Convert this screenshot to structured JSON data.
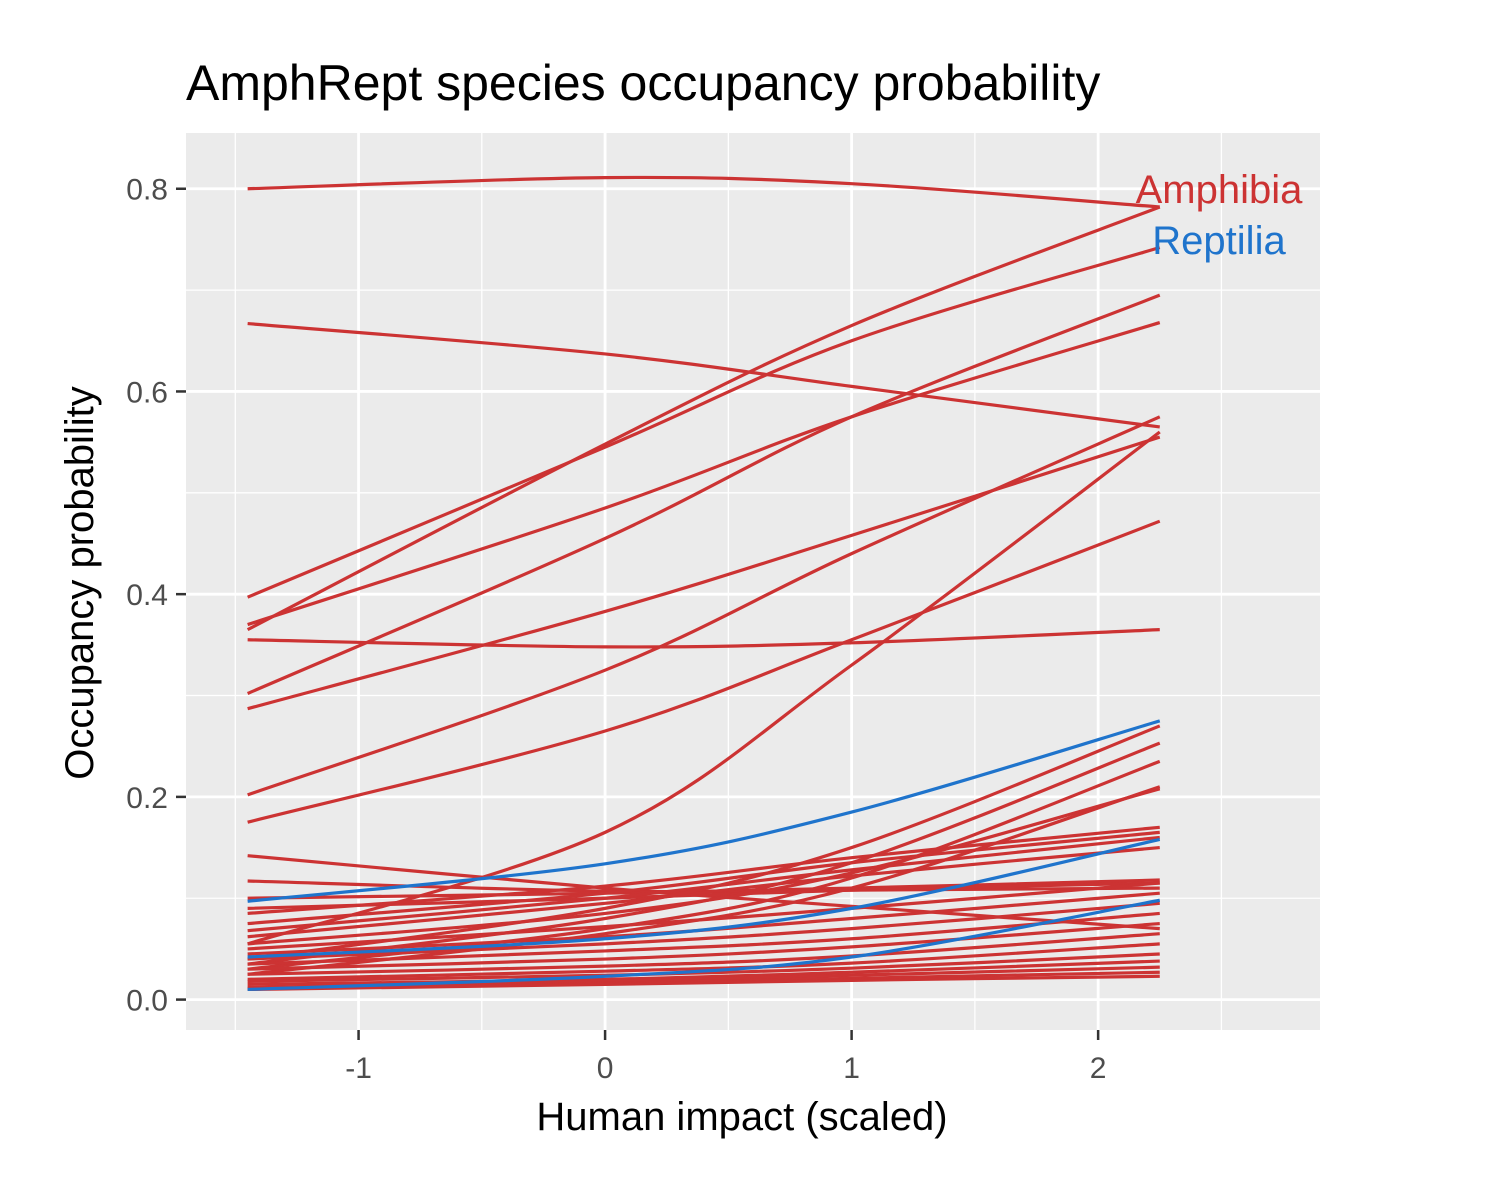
{
  "chart_data": {
    "type": "line",
    "title": "AmphRept species occupancy probability",
    "xlabel": "Human impact (scaled)",
    "ylabel": "Occupancy probability",
    "xlim": [
      -1.7,
      2.9
    ],
    "ylim": [
      -0.03,
      0.855
    ],
    "x_ticks": [
      -1,
      0,
      1,
      2
    ],
    "x_tick_labels": [
      "-1",
      "0",
      "1",
      "2"
    ],
    "y_ticks": [
      0.0,
      0.2,
      0.4,
      0.6,
      0.8
    ],
    "y_tick_labels": [
      "0.0",
      "0.2",
      "0.4",
      "0.6",
      "0.8"
    ],
    "grid": true,
    "legend": {
      "placement": "top-right",
      "entries": [
        {
          "name": "Amphibia",
          "color": "#cc3333"
        },
        {
          "name": "Reptilia",
          "color": "#1f74cc"
        }
      ]
    },
    "colors": {
      "Amphibia": "#cc3333",
      "Reptilia": "#1f74cc",
      "panel": "#ebebeb",
      "grid": "#ffffff"
    },
    "series": [
      {
        "group": "Amphibia",
        "x": [
          -1.45,
          0.0,
          1.0,
          2.25
        ],
        "y": [
          0.8,
          0.811,
          0.805,
          0.782
        ]
      },
      {
        "group": "Amphibia",
        "x": [
          -1.45,
          0.0,
          1.0,
          2.25
        ],
        "y": [
          0.667,
          0.637,
          0.605,
          0.565
        ]
      },
      {
        "group": "Amphibia",
        "x": [
          -1.45,
          0.0,
          1.0,
          2.25
        ],
        "y": [
          0.365,
          0.548,
          0.665,
          0.782
        ]
      },
      {
        "group": "Amphibia",
        "x": [
          -1.45,
          0.0,
          1.0,
          2.25
        ],
        "y": [
          0.397,
          0.545,
          0.65,
          0.742
        ]
      },
      {
        "group": "Amphibia",
        "x": [
          -1.45,
          0.0,
          1.0,
          2.25
        ],
        "y": [
          0.37,
          0.485,
          0.575,
          0.668
        ]
      },
      {
        "group": "Amphibia",
        "x": [
          -1.45,
          0.0,
          1.0,
          2.25
        ],
        "y": [
          0.302,
          0.455,
          0.575,
          0.695
        ]
      },
      {
        "group": "Amphibia",
        "x": [
          -1.45,
          0.0,
          1.0,
          2.25
        ],
        "y": [
          0.287,
          0.383,
          0.458,
          0.555
        ]
      },
      {
        "group": "Amphibia",
        "x": [
          -1.45,
          0.0,
          1.0,
          2.25
        ],
        "y": [
          0.355,
          0.348,
          0.352,
          0.365
        ]
      },
      {
        "group": "Amphibia",
        "x": [
          -1.45,
          0.0,
          1.0,
          2.25
        ],
        "y": [
          0.202,
          0.325,
          0.44,
          0.575
        ]
      },
      {
        "group": "Amphibia",
        "x": [
          -1.45,
          0.0,
          1.0,
          2.25
        ],
        "y": [
          0.175,
          0.265,
          0.355,
          0.472
        ]
      },
      {
        "group": "Amphibia",
        "x": [
          -1.45,
          0.0,
          1.0,
          2.25
        ],
        "y": [
          0.055,
          0.165,
          0.33,
          0.56
        ]
      },
      {
        "group": "Amphibia",
        "x": [
          -1.45,
          0.0,
          1.0,
          2.25
        ],
        "y": [
          0.142,
          0.11,
          0.092,
          0.07
        ]
      },
      {
        "group": "Amphibia",
        "x": [
          -1.45,
          0.0,
          1.0,
          2.25
        ],
        "y": [
          0.117,
          0.107,
          0.108,
          0.11
        ]
      },
      {
        "group": "Amphibia",
        "x": [
          -1.45,
          0.0,
          1.0,
          2.25
        ],
        "y": [
          0.1,
          0.105,
          0.11,
          0.118
        ]
      },
      {
        "group": "Amphibia",
        "x": [
          -1.45,
          0.0,
          1.0,
          2.25
        ],
        "y": [
          0.09,
          0.1,
          0.108,
          0.115
        ]
      },
      {
        "group": "Amphibia",
        "x": [
          -1.45,
          0.0,
          1.0,
          2.25
        ],
        "y": [
          0.085,
          0.112,
          0.14,
          0.17
        ]
      },
      {
        "group": "Amphibia",
        "x": [
          -1.45,
          0.0,
          1.0,
          2.25
        ],
        "y": [
          0.075,
          0.105,
          0.135,
          0.165
        ]
      },
      {
        "group": "Amphibia",
        "x": [
          -1.45,
          0.0,
          1.0,
          2.25
        ],
        "y": [
          0.068,
          0.1,
          0.128,
          0.16
        ]
      },
      {
        "group": "Amphibia",
        "x": [
          -1.45,
          0.0,
          1.0,
          2.25
        ],
        "y": [
          0.062,
          0.095,
          0.122,
          0.15
        ]
      },
      {
        "group": "Amphibia",
        "x": [
          -1.45,
          0.0,
          1.0,
          2.25
        ],
        "y": [
          0.04,
          0.09,
          0.15,
          0.27
        ]
      },
      {
        "group": "Amphibia",
        "x": [
          -1.45,
          0.0,
          1.0,
          2.25
        ],
        "y": [
          0.035,
          0.08,
          0.135,
          0.253
        ]
      },
      {
        "group": "Amphibia",
        "x": [
          -1.45,
          0.0,
          1.0,
          2.25
        ],
        "y": [
          0.03,
          0.07,
          0.12,
          0.235
        ]
      },
      {
        "group": "Amphibia",
        "x": [
          -1.45,
          0.0,
          1.0,
          2.25
        ],
        "y": [
          0.025,
          0.065,
          0.11,
          0.21
        ]
      },
      {
        "group": "Amphibia",
        "x": [
          -1.45,
          0.0,
          1.0,
          2.25
        ],
        "y": [
          0.055,
          0.085,
          0.125,
          0.208
        ]
      },
      {
        "group": "Amphibia",
        "x": [
          -1.45,
          0.0,
          1.0,
          2.25
        ],
        "y": [
          0.05,
          0.072,
          0.09,
          0.115
        ]
      },
      {
        "group": "Amphibia",
        "x": [
          -1.45,
          0.0,
          1.0,
          2.25
        ],
        "y": [
          0.045,
          0.062,
          0.08,
          0.105
        ]
      },
      {
        "group": "Amphibia",
        "x": [
          -1.45,
          0.0,
          1.0,
          2.25
        ],
        "y": [
          0.04,
          0.055,
          0.07,
          0.095
        ]
      },
      {
        "group": "Amphibia",
        "x": [
          -1.45,
          0.0,
          1.0,
          2.25
        ],
        "y": [
          0.035,
          0.048,
          0.06,
          0.085
        ]
      },
      {
        "group": "Amphibia",
        "x": [
          -1.45,
          0.0,
          1.0,
          2.25
        ],
        "y": [
          0.03,
          0.04,
          0.052,
          0.075
        ]
      },
      {
        "group": "Amphibia",
        "x": [
          -1.45,
          0.0,
          1.0,
          2.25
        ],
        "y": [
          0.025,
          0.033,
          0.043,
          0.065
        ]
      },
      {
        "group": "Amphibia",
        "x": [
          -1.45,
          0.0,
          1.0,
          2.25
        ],
        "y": [
          0.02,
          0.028,
          0.036,
          0.055
        ]
      },
      {
        "group": "Amphibia",
        "x": [
          -1.45,
          0.0,
          1.0,
          2.25
        ],
        "y": [
          0.018,
          0.024,
          0.031,
          0.045
        ]
      },
      {
        "group": "Amphibia",
        "x": [
          -1.45,
          0.0,
          1.0,
          2.25
        ],
        "y": [
          0.015,
          0.02,
          0.027,
          0.038
        ]
      },
      {
        "group": "Amphibia",
        "x": [
          -1.45,
          0.0,
          1.0,
          2.25
        ],
        "y": [
          0.012,
          0.018,
          0.024,
          0.032
        ]
      },
      {
        "group": "Amphibia",
        "x": [
          -1.45,
          0.0,
          1.0,
          2.25
        ],
        "y": [
          0.011,
          0.016,
          0.021,
          0.027
        ]
      },
      {
        "group": "Amphibia",
        "x": [
          -1.45,
          0.0,
          1.0,
          2.25
        ],
        "y": [
          0.01,
          0.015,
          0.019,
          0.023
        ]
      },
      {
        "group": "Reptilia",
        "x": [
          -1.45,
          0.0,
          1.0,
          2.25
        ],
        "y": [
          0.097,
          0.134,
          0.185,
          0.275
        ]
      },
      {
        "group": "Reptilia",
        "x": [
          -1.45,
          0.0,
          1.0,
          2.25
        ],
        "y": [
          0.042,
          0.06,
          0.09,
          0.158
        ]
      },
      {
        "group": "Reptilia",
        "x": [
          -1.45,
          0.0,
          1.0,
          2.25
        ],
        "y": [
          0.01,
          0.023,
          0.042,
          0.098
        ]
      }
    ]
  }
}
